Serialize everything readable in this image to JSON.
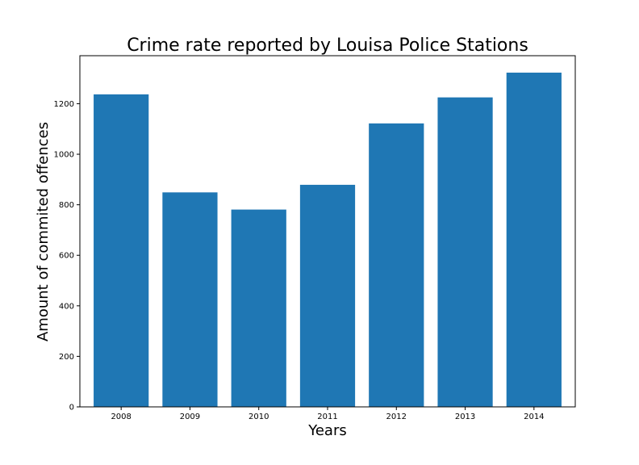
{
  "chart_data": {
    "type": "bar",
    "title": "Crime rate reported by Louisa Police Stations",
    "xlabel": "Years",
    "ylabel": "Amount of commited offences",
    "categories": [
      "2008",
      "2009",
      "2010",
      "2011",
      "2012",
      "2013",
      "2014"
    ],
    "values": [
      1237,
      849,
      781,
      879,
      1122,
      1225,
      1323
    ],
    "ylim": [
      0,
      1390
    ],
    "yticks": [
      0,
      200,
      400,
      600,
      800,
      1000,
      1200
    ],
    "grid": false,
    "bar_color": "#1f77b4"
  }
}
